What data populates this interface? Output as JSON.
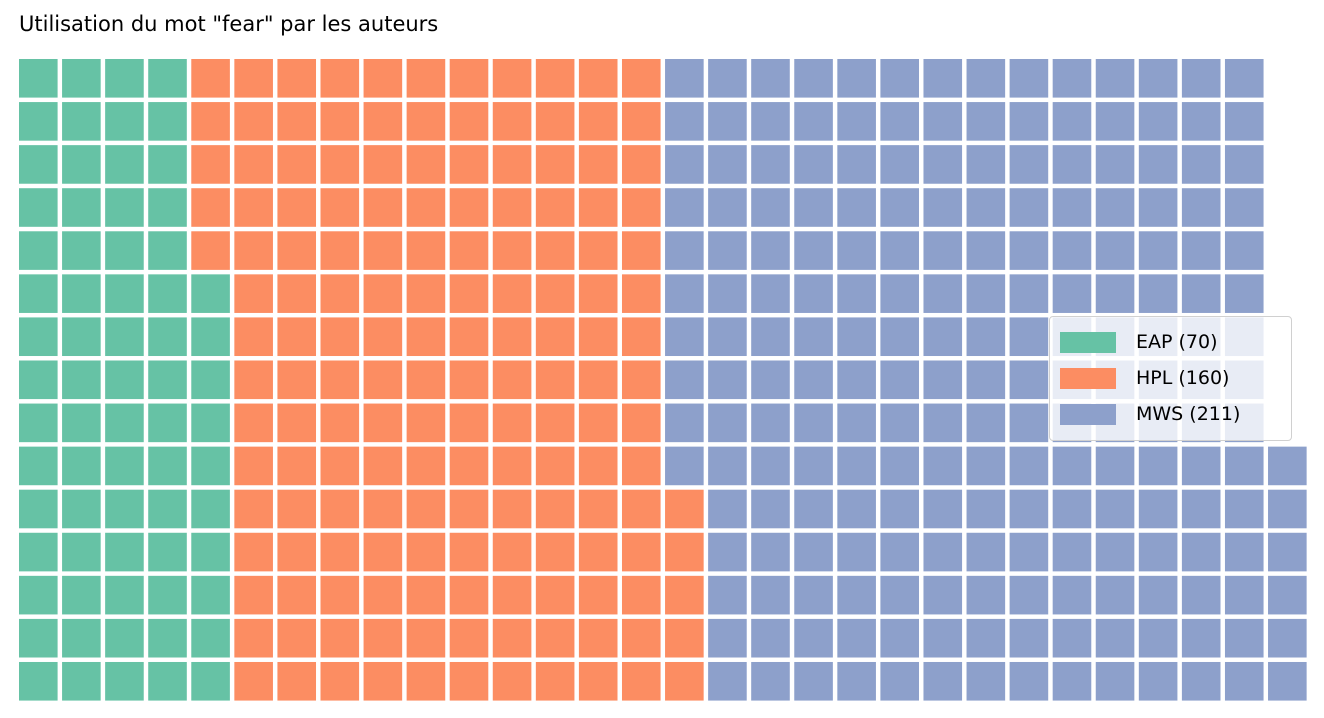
{
  "chart_data": {
    "type": "waffle",
    "title": "Utilisation du mot \"fear\" par les auteurs",
    "rows": 15,
    "series": [
      {
        "name": "EAP",
        "label": "EAP (70)",
        "value": 70,
        "color": "#66c2a5"
      },
      {
        "name": "HPL",
        "label": "HPL (160)",
        "value": 160,
        "color": "#fc8d62"
      },
      {
        "name": "MWS",
        "label": "MWS (211)",
        "value": 211,
        "color": "#8da0cb"
      }
    ],
    "legend_position": "right"
  }
}
